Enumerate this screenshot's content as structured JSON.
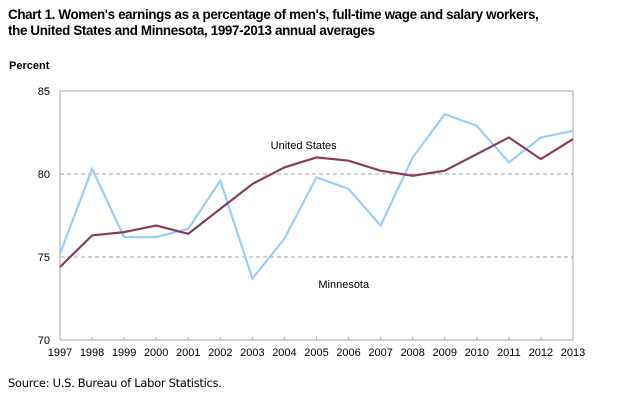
{
  "chart_data": {
    "type": "line",
    "title_lines": [
      "Chart 1. Women's earnings as a percentage of men's, full-time wage and salary workers,",
      "the United States and Minnesota, 1997-2013  annual averages"
    ],
    "xlabel": "",
    "ylabel": "Percent",
    "ylim": [
      70,
      85
    ],
    "yticks": [
      70,
      75,
      80,
      85
    ],
    "grid": "dashed horizontal at 75 and 80",
    "x": [
      "1997",
      "1998",
      "1999",
      "2000",
      "2001",
      "2002",
      "2003",
      "2004",
      "2005",
      "2006",
      "2007",
      "2008",
      "2009",
      "2010",
      "2011",
      "2012",
      "2013"
    ],
    "series": [
      {
        "name": "United States",
        "color": "#8B3A62",
        "values": [
          74.4,
          76.3,
          76.5,
          76.9,
          76.4,
          77.9,
          79.4,
          80.4,
          81.0,
          80.8,
          80.2,
          79.9,
          80.2,
          81.2,
          82.2,
          80.9,
          82.1
        ]
      },
      {
        "name": "Minnesota",
        "color": "#99CCFF",
        "values": [
          75.2,
          80.3,
          76.2,
          76.2,
          76.7,
          79.6,
          73.7,
          76.1,
          79.8,
          79.1,
          76.9,
          81.0,
          83.6,
          82.9,
          80.7,
          82.2,
          82.6
        ]
      }
    ],
    "annotations": [
      {
        "text": "United States",
        "series": "United States"
      },
      {
        "text": "Minnesota",
        "series": "Minnesota"
      }
    ],
    "source": "Source:  U.S. Bureau of Labor Statistics."
  }
}
